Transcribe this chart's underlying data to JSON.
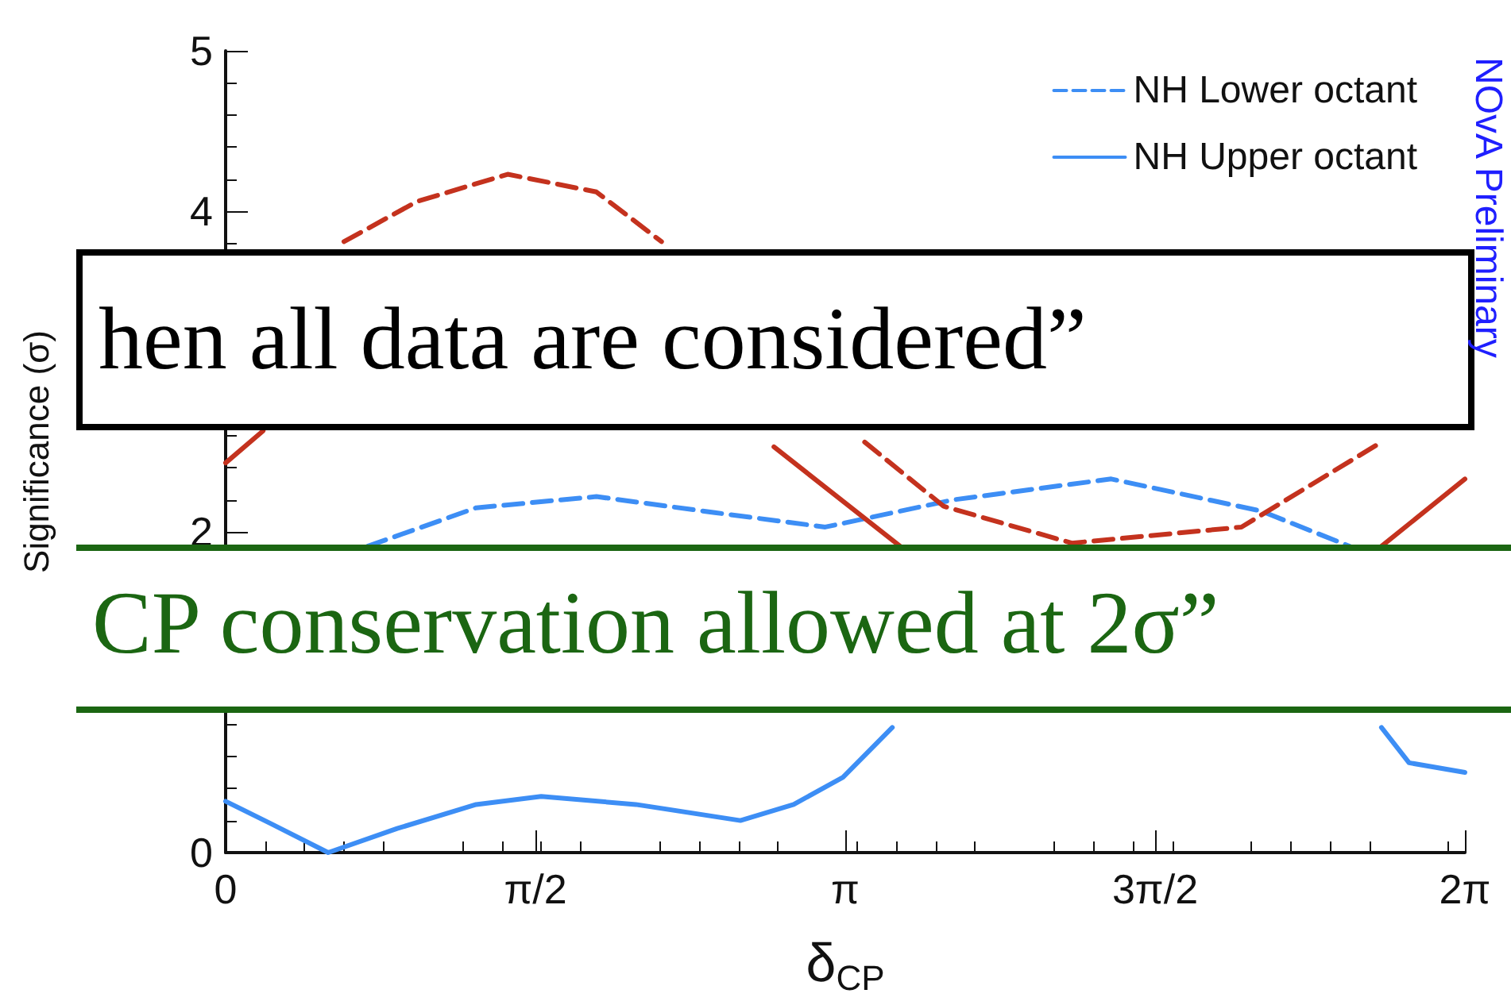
{
  "chart_data": {
    "type": "line",
    "xlabel": "δ$_{CP}$",
    "ylabel": "Significance (σ)",
    "xlim": [
      0,
      6.2832
    ],
    "xticks": [
      {
        "value": 0,
        "label": "0"
      },
      {
        "value": 1.5708,
        "label": "π/2"
      },
      {
        "value": 3.1416,
        "label": "π"
      },
      {
        "value": 4.7124,
        "label": "3π/2"
      },
      {
        "value": 6.2832,
        "label": "2π"
      }
    ],
    "ylim": [
      0,
      5
    ],
    "yticks": [
      0,
      2,
      4,
      5
    ],
    "legend": "top right",
    "grid": false,
    "series": [
      {
        "name": "NH Lower octant",
        "color": "#3d8ef5",
        "line_style": "dashed",
        "x": [
          0.72,
          1.27,
          1.88,
          2.48,
          3.04,
          3.69,
          4.49,
          5.25,
          5.7
        ],
        "values": [
          1.91,
          2.15,
          2.22,
          2.12,
          2.03,
          2.2,
          2.33,
          2.13,
          1.91
        ]
      },
      {
        "name": "NH Upper octant",
        "color": "#3d8ef5",
        "line_style": "solid",
        "x": [
          0,
          0.23,
          0.52,
          0.87,
          1.27,
          1.6,
          2.08,
          2.61,
          2.88,
          3.13,
          3.38,
          4.6,
          5.86,
          6.0,
          6.2832
        ],
        "values": [
          0.32,
          0.18,
          0,
          0.15,
          0.3,
          0.35,
          0.3,
          0.2,
          0.3,
          0.47,
          0.78,
          null,
          0.78,
          0.56,
          0.5
        ]
      },
      {
        "color": "#c4321e",
        "line_style": "dashed",
        "x": [
          0.6,
          0.97,
          1.43,
          1.88,
          2.21,
          2.7,
          3.24,
          3.64,
          4.29,
          5.15,
          5.86
        ],
        "values": [
          3.81,
          4.06,
          4.23,
          4.12,
          3.81,
          null,
          2.56,
          2.16,
          1.93,
          2.03,
          2.56
        ]
      },
      {
        "color": "#c4321e",
        "line_style": "solid",
        "x": [
          0,
          0.19,
          1.5,
          2.78,
          3.42,
          4.6,
          5.86,
          6.2832
        ],
        "values": [
          2.43,
          2.63,
          null,
          2.53,
          1.91,
          null,
          1.91,
          2.33
        ]
      }
    ],
    "annotations": [
      "hen all data are considered”",
      "CP conservation allowed at 2σ”",
      "NOvA Preliminary"
    ]
  }
}
